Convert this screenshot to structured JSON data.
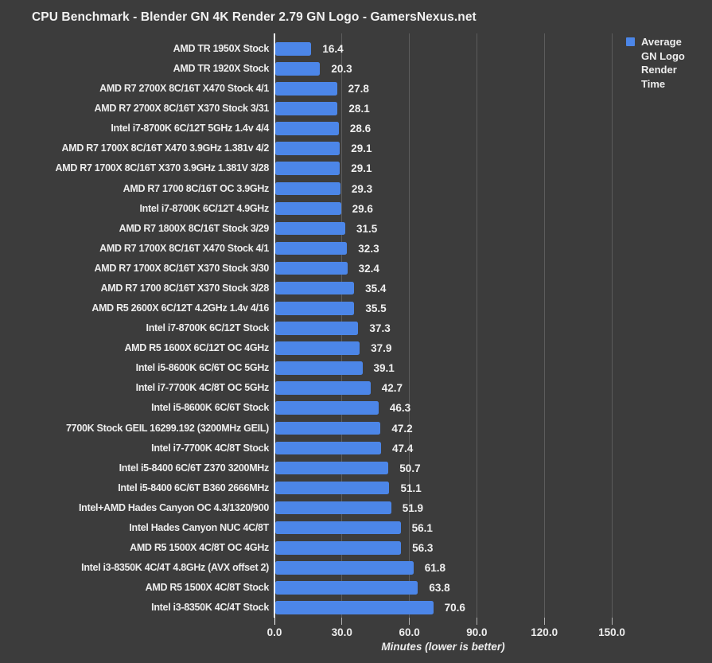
{
  "chart_data": {
    "type": "bar",
    "orientation": "horizontal",
    "title": "CPU Benchmark - Blender GN 4K Render 2.79 GN Logo - GamersNexus.net",
    "xlabel": "Minutes (lower is better)",
    "xlim": [
      0,
      150
    ],
    "x_ticks": [
      0,
      30,
      60,
      90,
      120,
      150
    ],
    "x_tick_labels": [
      "0.0",
      "30.0",
      "60.0",
      "90.0",
      "120.0",
      "150.0"
    ],
    "grid": true,
    "legend_position": "top-right",
    "series": [
      {
        "name": "Average GN Logo Render Time",
        "color": "#4c86e8"
      }
    ],
    "categories": [
      "AMD TR 1950X Stock",
      "AMD TR 1920X Stock",
      "AMD R7 2700X 8C/16T X470 Stock 4/1",
      "AMD R7 2700X 8C/16T X370 Stock 3/31",
      "Intel i7-8700K 6C/12T 5GHz 1.4v 4/4",
      "AMD R7 1700X 8C/16T X470 3.9GHz 1.381v 4/2",
      "AMD R7 1700X 8C/16T X370 3.9GHz 1.381V 3/28",
      "AMD R7 1700 8C/16T OC 3.9GHz",
      "Intel i7-8700K 6C/12T 4.9GHz",
      "AMD R7 1800X 8C/16T Stock 3/29",
      "AMD R7 1700X 8C/16T X470 Stock 4/1",
      "AMD R7 1700X 8C/16T X370 Stock 3/30",
      "AMD R7 1700 8C/16T X370 Stock 3/28",
      "AMD R5 2600X 6C/12T 4.2GHz 1.4v 4/16",
      "Intel i7-8700K 6C/12T Stock",
      "AMD R5 1600X 6C/12T OC 4GHz",
      "Intel i5-8600K 6C/6T OC 5GHz",
      "Intel i7-7700K 4C/8T OC 5GHz",
      "Intel i5-8600K 6C/6T Stock",
      "7700K Stock GEIL 16299.192 (3200MHz GEIL)",
      "Intel i7-7700K 4C/8T Stock",
      "Intel i5-8400 6C/6T Z370 3200MHz",
      "Intel i5-8400 6C/6T B360 2666MHz",
      "Intel+AMD Hades Canyon OC 4.3/1320/900",
      "Intel Hades Canyon NUC 4C/8T",
      "AMD R5 1500X 4C/8T OC 4GHz",
      "Intel i3-8350K 4C/4T 4.8GHz (AVX offset 2)",
      "AMD R5 1500X 4C/8T Stock",
      "Intel i3-8350K 4C/4T Stock"
    ],
    "values": [
      16.4,
      20.3,
      27.8,
      28.1,
      28.6,
      29.1,
      29.1,
      29.3,
      29.6,
      31.5,
      32.3,
      32.4,
      35.4,
      35.5,
      37.3,
      37.9,
      39.1,
      42.7,
      46.3,
      47.2,
      47.4,
      50.7,
      51.1,
      51.9,
      56.1,
      56.3,
      61.8,
      63.8,
      70.6
    ],
    "colors": {
      "background": "#3c3c3c",
      "bar": "#4c86e8",
      "gridline": "#5c5c5c",
      "baseline": "#fbfbfb",
      "text": "#f0f0f0"
    }
  }
}
